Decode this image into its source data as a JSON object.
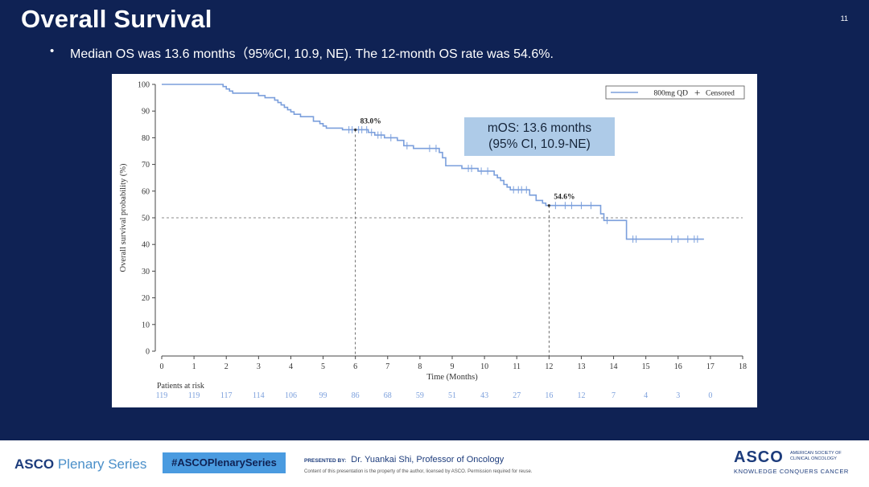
{
  "slide": {
    "title": "Overall Survival",
    "number": "11",
    "bullet_marker": "•",
    "bullet": "Median OS was 13.6 months（95%CI, 10.9, NE). The 12-month OS rate was 54.6%."
  },
  "chart_data": {
    "type": "line",
    "subtype": "kaplan-meier",
    "ylabel": "Overall survival probability (%)",
    "xlabel": "Time (Months)",
    "xlim": [
      0,
      18
    ],
    "ylim": [
      0,
      100
    ],
    "x_ticks": [
      0,
      1,
      2,
      3,
      4,
      5,
      6,
      7,
      8,
      9,
      10,
      11,
      12,
      13,
      14,
      15,
      16,
      17,
      18
    ],
    "y_ticks": [
      0,
      10,
      20,
      30,
      40,
      50,
      60,
      70,
      80,
      90,
      100
    ],
    "legend": {
      "position": "top-right",
      "series_label": "800mg QD",
      "censored_label": "Censored",
      "censored_symbol": "+"
    },
    "series": [
      {
        "name": "800mg QD",
        "color": "#7b9fdc",
        "steps": [
          [
            0,
            100
          ],
          [
            1.9,
            99.2
          ],
          [
            2.0,
            98.3
          ],
          [
            2.1,
            97.5
          ],
          [
            2.2,
            96.7
          ],
          [
            3.0,
            95.8
          ],
          [
            3.2,
            95.0
          ],
          [
            3.5,
            94.1
          ],
          [
            3.6,
            93.2
          ],
          [
            3.7,
            92.3
          ],
          [
            3.8,
            91.4
          ],
          [
            3.9,
            90.5
          ],
          [
            4.0,
            89.7
          ],
          [
            4.1,
            88.8
          ],
          [
            4.3,
            87.9
          ],
          [
            4.7,
            86.2
          ],
          [
            4.9,
            85.3
          ],
          [
            5.0,
            84.4
          ],
          [
            5.1,
            83.6
          ],
          [
            5.6,
            83.0
          ],
          [
            6.4,
            82.0
          ],
          [
            6.6,
            81.0
          ],
          [
            6.9,
            80.0
          ],
          [
            7.3,
            79.0
          ],
          [
            7.5,
            77.0
          ],
          [
            7.8,
            76.0
          ],
          [
            8.6,
            74.5
          ],
          [
            8.7,
            72.5
          ],
          [
            8.8,
            69.5
          ],
          [
            9.3,
            68.5
          ],
          [
            9.8,
            67.5
          ],
          [
            10.3,
            66.0
          ],
          [
            10.4,
            65.0
          ],
          [
            10.5,
            64.0
          ],
          [
            10.6,
            62.5
          ],
          [
            10.7,
            61.5
          ],
          [
            10.8,
            60.5
          ],
          [
            11.4,
            58.5
          ],
          [
            11.6,
            56.5
          ],
          [
            11.8,
            55.5
          ],
          [
            11.9,
            54.6
          ],
          [
            13.6,
            51.5
          ],
          [
            13.7,
            49.0
          ],
          [
            14.4,
            42.0
          ],
          [
            16.8,
            42.0
          ]
        ],
        "censored": [
          [
            5.8,
            83.0
          ],
          [
            5.9,
            83.0
          ],
          [
            6.1,
            83.0
          ],
          [
            6.2,
            83.0
          ],
          [
            6.35,
            83.0
          ],
          [
            6.5,
            82.0
          ],
          [
            6.7,
            81.0
          ],
          [
            6.8,
            81.0
          ],
          [
            7.1,
            80.0
          ],
          [
            7.6,
            77.0
          ],
          [
            8.3,
            76.0
          ],
          [
            8.5,
            76.0
          ],
          [
            9.5,
            68.5
          ],
          [
            9.6,
            68.5
          ],
          [
            9.9,
            67.5
          ],
          [
            10.1,
            67.5
          ],
          [
            10.9,
            60.5
          ],
          [
            11.05,
            60.5
          ],
          [
            11.15,
            60.5
          ],
          [
            11.3,
            60.5
          ],
          [
            12.2,
            54.6
          ],
          [
            12.5,
            54.6
          ],
          [
            12.7,
            54.6
          ],
          [
            13.0,
            54.6
          ],
          [
            13.3,
            54.6
          ],
          [
            13.8,
            49.0
          ],
          [
            14.6,
            42.0
          ],
          [
            14.7,
            42.0
          ],
          [
            15.8,
            42.0
          ],
          [
            16.0,
            42.0
          ],
          [
            16.3,
            42.0
          ],
          [
            16.5,
            42.0
          ],
          [
            16.6,
            42.0
          ]
        ]
      }
    ],
    "reference_lines": [
      {
        "axis": "y",
        "value": 50
      },
      {
        "axis": "x",
        "value": 6,
        "to_y": 83.0
      },
      {
        "axis": "x",
        "value": 12,
        "to_y": 54.6
      }
    ],
    "annotations": [
      {
        "x": 6,
        "y": 83.0,
        "text": "83.0%"
      },
      {
        "x": 12,
        "y": 54.6,
        "text": "54.6%"
      }
    ],
    "callout": {
      "line1": "mOS: 13.6 months",
      "line2": "(95% CI, 10.9-NE)"
    },
    "risk_table": {
      "label": "Patients at risk",
      "times": [
        0,
        1,
        2,
        3,
        4,
        5,
        6,
        7,
        8,
        9,
        10,
        11,
        12,
        13,
        14,
        15,
        16,
        17
      ],
      "counts": [
        "119",
        "119",
        "117",
        "114",
        "106",
        "99",
        "86",
        "68",
        "59",
        "51",
        "43",
        "27",
        "16",
        "12",
        "7",
        "4",
        "3",
        "0"
      ]
    },
    "colors": {
      "line": "#7b9fdc",
      "axis": "#444444",
      "risk_numbers": "#7b9fdc"
    }
  },
  "footer": {
    "brand_bold": "ASCO",
    "brand_rest": " Plenary Series",
    "hashtag": "#ASCOPlenarySeries",
    "presented_label": "PRESENTED BY:",
    "presenter": "Dr. Yuankai Shi, Professor of Oncology",
    "disclaimer": "Content of this presentation is the property of the author, licensed by ASCO. Permission required for reuse.",
    "logo": "ASCO",
    "society_line1": "AMERICAN SOCIETY OF",
    "society_line2": "CLINICAL ONCOLOGY",
    "tagline": "KNOWLEDGE CONQUERS CANCER"
  }
}
